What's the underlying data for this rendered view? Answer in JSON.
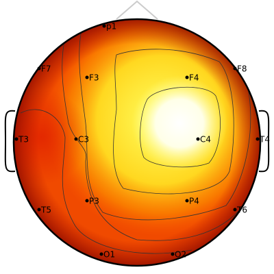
{
  "electrodes": [
    "p1",
    "F7",
    "F3",
    "F4",
    "F8",
    "T3",
    "C3",
    "C4",
    "T4",
    "T5",
    "P3",
    "P4",
    "T6",
    "O1",
    "O2"
  ]
}
